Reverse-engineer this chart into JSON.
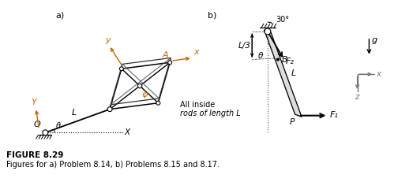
{
  "fig_width": 5.04,
  "fig_height": 2.31,
  "dpi": 100,
  "bg_color": "#ffffff",
  "line_color": "#000000",
  "gray_color": "#777777",
  "orange_color": "#cc6600",
  "fig_label_a": "a)",
  "fig_label_b": "b)",
  "figure_label": "FIGURE 8.29",
  "figure_caption": "Figures for a) Problem 8.14, b) Problems 8.15 and 8.17.",
  "label_A": "A",
  "label_x_a": "x",
  "label_y_a": "y",
  "label_Y": "Y",
  "label_L_a": "L",
  "label_O": "O",
  "label_X": "X",
  "label_phi": "φ",
  "label_theta_a": "θ",
  "label_all_inside": "All inside",
  "label_rods": "rods of length L",
  "label_30": "30°",
  "label_F2": "F₂",
  "label_g": "g",
  "label_L3": "L/3",
  "label_B": "B",
  "label_L_b": "L",
  "label_theta_b": "θ",
  "label_P": "P",
  "label_F1": "F₁",
  "label_x_b": "x",
  "label_z": "z"
}
